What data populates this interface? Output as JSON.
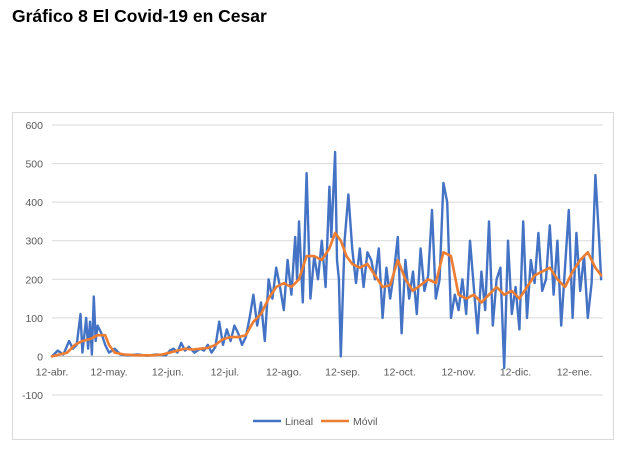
{
  "title": "Gráfico 8 El Covid-19 en Cesar",
  "chart_data": {
    "type": "line",
    "ylim": [
      -100,
      600
    ],
    "yticks": [
      -100,
      0,
      100,
      200,
      300,
      400,
      500,
      600
    ],
    "xlim": [
      0,
      290
    ],
    "grid": true,
    "legend_position": "bottom",
    "xticks": [
      {
        "label": "12-abr.",
        "x": 0
      },
      {
        "label": "12-may.",
        "x": 30
      },
      {
        "label": "12-jun.",
        "x": 61
      },
      {
        "label": "12-jul.",
        "x": 91
      },
      {
        "label": "12-ago.",
        "x": 122
      },
      {
        "label": "12-sep.",
        "x": 153
      },
      {
        "label": "12-oct.",
        "x": 183
      },
      {
        "label": "12-nov.",
        "x": 214
      },
      {
        "label": "12-dic.",
        "x": 244
      },
      {
        "label": "12-ene.",
        "x": 275
      }
    ],
    "series": [
      {
        "name": "Lineal",
        "color": "#4472c4",
        "points": [
          [
            0,
            0
          ],
          [
            3,
            15
          ],
          [
            6,
            5
          ],
          [
            9,
            40
          ],
          [
            11,
            20
          ],
          [
            13,
            30
          ],
          [
            15,
            110
          ],
          [
            16,
            10
          ],
          [
            18,
            100
          ],
          [
            19,
            20
          ],
          [
            20,
            90
          ],
          [
            21,
            5
          ],
          [
            22,
            155
          ],
          [
            23,
            40
          ],
          [
            24,
            80
          ],
          [
            26,
            60
          ],
          [
            28,
            30
          ],
          [
            30,
            10
          ],
          [
            33,
            20
          ],
          [
            36,
            5
          ],
          [
            40,
            3
          ],
          [
            45,
            5
          ],
          [
            50,
            2
          ],
          [
            55,
            5
          ],
          [
            60,
            3
          ],
          [
            62,
            15
          ],
          [
            64,
            20
          ],
          [
            66,
            10
          ],
          [
            68,
            35
          ],
          [
            70,
            15
          ],
          [
            72,
            25
          ],
          [
            75,
            10
          ],
          [
            78,
            20
          ],
          [
            80,
            15
          ],
          [
            82,
            30
          ],
          [
            84,
            10
          ],
          [
            86,
            25
          ],
          [
            88,
            90
          ],
          [
            90,
            30
          ],
          [
            92,
            70
          ],
          [
            94,
            40
          ],
          [
            96,
            80
          ],
          [
            98,
            60
          ],
          [
            100,
            30
          ],
          [
            102,
            50
          ],
          [
            104,
            100
          ],
          [
            106,
            160
          ],
          [
            108,
            80
          ],
          [
            110,
            140
          ],
          [
            112,
            40
          ],
          [
            114,
            200
          ],
          [
            116,
            150
          ],
          [
            118,
            230
          ],
          [
            120,
            180
          ],
          [
            122,
            120
          ],
          [
            124,
            250
          ],
          [
            126,
            160
          ],
          [
            128,
            310
          ],
          [
            129,
            200
          ],
          [
            130,
            350
          ],
          [
            132,
            140
          ],
          [
            134,
            475
          ],
          [
            136,
            150
          ],
          [
            138,
            260
          ],
          [
            140,
            200
          ],
          [
            142,
            300
          ],
          [
            144,
            180
          ],
          [
            146,
            440
          ],
          [
            147,
            310
          ],
          [
            149,
            530
          ],
          [
            150,
            250
          ],
          [
            151,
            200
          ],
          [
            152,
            0
          ],
          [
            154,
            300
          ],
          [
            156,
            420
          ],
          [
            158,
            280
          ],
          [
            160,
            190
          ],
          [
            162,
            280
          ],
          [
            164,
            180
          ],
          [
            166,
            270
          ],
          [
            168,
            250
          ],
          [
            170,
            200
          ],
          [
            172,
            280
          ],
          [
            174,
            100
          ],
          [
            176,
            230
          ],
          [
            178,
            150
          ],
          [
            180,
            220
          ],
          [
            182,
            310
          ],
          [
            184,
            60
          ],
          [
            186,
            250
          ],
          [
            188,
            150
          ],
          [
            190,
            220
          ],
          [
            192,
            110
          ],
          [
            194,
            280
          ],
          [
            196,
            170
          ],
          [
            198,
            210
          ],
          [
            200,
            380
          ],
          [
            202,
            150
          ],
          [
            204,
            200
          ],
          [
            206,
            450
          ],
          [
            208,
            400
          ],
          [
            210,
            100
          ],
          [
            212,
            160
          ],
          [
            214,
            120
          ],
          [
            216,
            200
          ],
          [
            218,
            110
          ],
          [
            220,
            300
          ],
          [
            222,
            180
          ],
          [
            224,
            60
          ],
          [
            226,
            220
          ],
          [
            228,
            120
          ],
          [
            230,
            350
          ],
          [
            232,
            80
          ],
          [
            234,
            200
          ],
          [
            236,
            230
          ],
          [
            238,
            -30
          ],
          [
            240,
            300
          ],
          [
            242,
            110
          ],
          [
            244,
            180
          ],
          [
            246,
            70
          ],
          [
            248,
            350
          ],
          [
            250,
            100
          ],
          [
            252,
            250
          ],
          [
            254,
            190
          ],
          [
            256,
            320
          ],
          [
            258,
            170
          ],
          [
            260,
            200
          ],
          [
            262,
            340
          ],
          [
            264,
            160
          ],
          [
            266,
            300
          ],
          [
            268,
            80
          ],
          [
            270,
            230
          ],
          [
            272,
            380
          ],
          [
            274,
            100
          ],
          [
            276,
            320
          ],
          [
            278,
            170
          ],
          [
            280,
            260
          ],
          [
            282,
            100
          ],
          [
            284,
            190
          ],
          [
            286,
            470
          ],
          [
            288,
            300
          ],
          [
            289,
            200
          ]
        ]
      },
      {
        "name": "Móvil",
        "color": "#ed7d31",
        "points": [
          [
            0,
            0
          ],
          [
            4,
            5
          ],
          [
            8,
            10
          ],
          [
            12,
            30
          ],
          [
            16,
            40
          ],
          [
            20,
            45
          ],
          [
            24,
            55
          ],
          [
            28,
            55
          ],
          [
            30,
            30
          ],
          [
            33,
            10
          ],
          [
            38,
            5
          ],
          [
            45,
            3
          ],
          [
            52,
            3
          ],
          [
            58,
            5
          ],
          [
            62,
            10
          ],
          [
            66,
            15
          ],
          [
            70,
            20
          ],
          [
            74,
            18
          ],
          [
            78,
            20
          ],
          [
            82,
            22
          ],
          [
            86,
            30
          ],
          [
            90,
            45
          ],
          [
            94,
            50
          ],
          [
            98,
            50
          ],
          [
            102,
            55
          ],
          [
            106,
            90
          ],
          [
            110,
            110
          ],
          [
            114,
            150
          ],
          [
            118,
            180
          ],
          [
            122,
            190
          ],
          [
            126,
            180
          ],
          [
            130,
            200
          ],
          [
            134,
            260
          ],
          [
            138,
            260
          ],
          [
            142,
            250
          ],
          [
            146,
            280
          ],
          [
            149,
            320
          ],
          [
            152,
            300
          ],
          [
            155,
            260
          ],
          [
            158,
            240
          ],
          [
            162,
            230
          ],
          [
            166,
            240
          ],
          [
            170,
            210
          ],
          [
            174,
            180
          ],
          [
            178,
            185
          ],
          [
            182,
            250
          ],
          [
            186,
            200
          ],
          [
            190,
            170
          ],
          [
            194,
            185
          ],
          [
            198,
            200
          ],
          [
            202,
            190
          ],
          [
            206,
            270
          ],
          [
            210,
            260
          ],
          [
            214,
            160
          ],
          [
            218,
            150
          ],
          [
            222,
            160
          ],
          [
            226,
            140
          ],
          [
            230,
            160
          ],
          [
            234,
            180
          ],
          [
            238,
            160
          ],
          [
            242,
            170
          ],
          [
            246,
            150
          ],
          [
            250,
            180
          ],
          [
            254,
            210
          ],
          [
            258,
            220
          ],
          [
            262,
            230
          ],
          [
            266,
            200
          ],
          [
            270,
            180
          ],
          [
            274,
            220
          ],
          [
            278,
            250
          ],
          [
            282,
            270
          ],
          [
            286,
            230
          ],
          [
            289,
            210
          ]
        ]
      }
    ]
  }
}
